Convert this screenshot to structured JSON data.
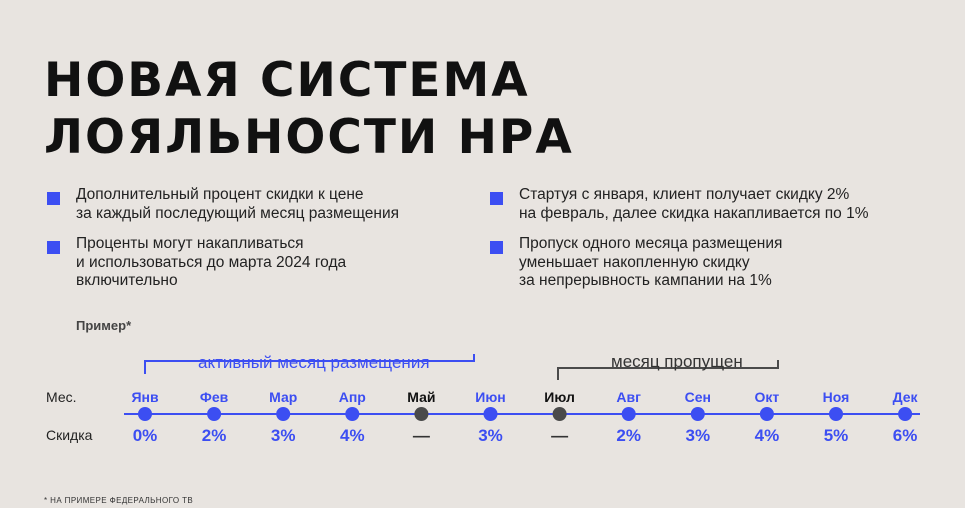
{
  "title": {
    "line1": "НОВАЯ СИСТЕМА",
    "line2": "ЛОЯЛЬНОСТИ НРА"
  },
  "bullets": [
    {
      "lines": [
        "Дополнительный процент скидки к цене",
        "за каждый последующий месяц размещения"
      ]
    },
    {
      "lines": [
        "Проценты могут накапливаться",
        "и использоваться до марта 2024 года",
        "включительно"
      ]
    },
    {
      "lines": [
        "Стартуя с января, клиент получает скидку 2%",
        "на февраль, далее скидка накапливается по 1%"
      ]
    },
    {
      "lines": [
        "Пропуск одного месяца размещения",
        "уменьшает накопленную скидку",
        "за непрерывность кампании на 1%"
      ]
    }
  ],
  "example_label": "Пример*",
  "timeline": {
    "row_month_label": "Мес.",
    "row_discount_label": "Скидка",
    "active_label": "активный месяц размещения",
    "skipped_label": "месяц пропущен",
    "months": [
      {
        "name": "Янв",
        "discount": "0%",
        "active": true
      },
      {
        "name": "Фев",
        "discount": "2%",
        "active": true
      },
      {
        "name": "Мар",
        "discount": "3%",
        "active": true
      },
      {
        "name": "Апр",
        "discount": "4%",
        "active": true
      },
      {
        "name": "Май",
        "discount": "—",
        "active": false
      },
      {
        "name": "Июн",
        "discount": "3%",
        "active": true
      },
      {
        "name": "Июл",
        "discount": "—",
        "active": false
      },
      {
        "name": "Авг",
        "discount": "2%",
        "active": true
      },
      {
        "name": "Сен",
        "discount": "3%",
        "active": true
      },
      {
        "name": "Окт",
        "discount": "4%",
        "active": true
      },
      {
        "name": "Ноя",
        "discount": "5%",
        "active": true
      },
      {
        "name": "Дек",
        "discount": "6%",
        "active": true
      }
    ]
  },
  "footnote": "* НА ПРИМЕРЕ ФЕДЕРАЛЬНОГО ТВ",
  "colors": {
    "accent": "#3c4ef2",
    "inactive": "#4a4a4a",
    "background": "#e8e4e0"
  }
}
